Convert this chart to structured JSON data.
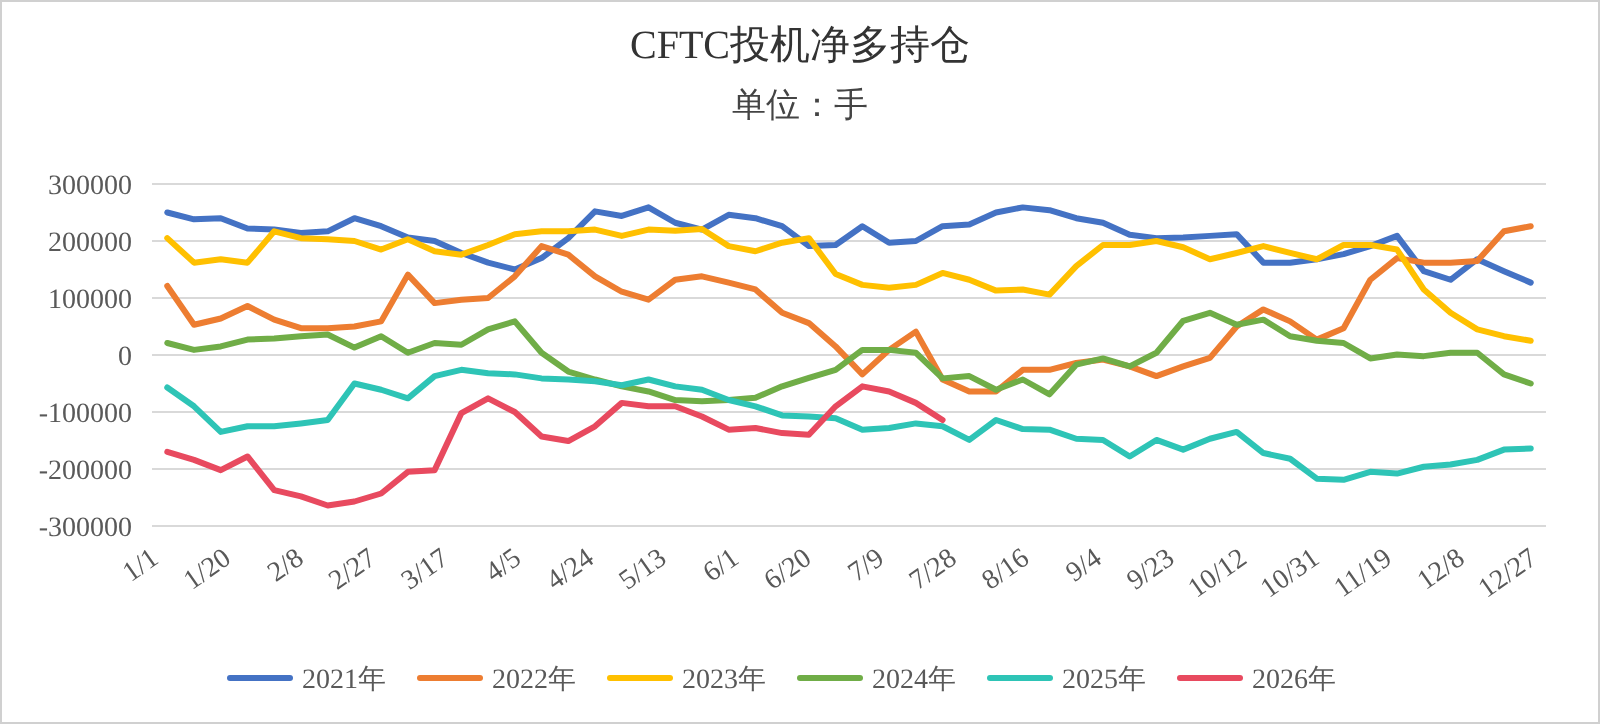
{
  "chart_data": {
    "type": "line",
    "title": "CFTC投机净多持仓",
    "subtitle": "单位：手",
    "x": [
      "--01-05",
      "--01-12",
      "--01-19",
      "--01-26",
      "--02-02",
      "--02-09",
      "--02-16",
      "--02-23",
      "--03-01",
      "--03-08",
      "--03-15",
      "--03-22",
      "--03-29",
      "--04-05",
      "--04-12",
      "--04-19",
      "--04-26",
      "--05-03",
      "--05-10",
      "--05-17",
      "--05-24",
      "--05-31",
      "--06-07",
      "--06-14",
      "--06-21",
      "--06-28",
      "--07-05",
      "--07-12",
      "--07-19",
      "--07-26",
      "--08-02",
      "--08-09",
      "--08-16",
      "--08-23",
      "--08-30",
      "--09-06",
      "--09-13",
      "--09-20",
      "--09-27",
      "--10-04",
      "--10-11",
      "--10-18",
      "--10-25",
      "--11-01",
      "--11-08",
      "--11-15",
      "--11-22",
      "--11-29",
      "--12-06",
      "--12-13",
      "--12-20",
      "--12-27"
    ],
    "xlim": [
      "--01-01",
      "--12-31"
    ],
    "xticks": [
      {
        "value": "--01-01",
        "label": "1/1"
      },
      {
        "value": "--01-20",
        "label": "1/20"
      },
      {
        "value": "--02-08",
        "label": "2/8"
      },
      {
        "value": "--02-27",
        "label": "2/27"
      },
      {
        "value": "--03-17",
        "label": "3/17"
      },
      {
        "value": "--04-05",
        "label": "4/5"
      },
      {
        "value": "--04-24",
        "label": "4/24"
      },
      {
        "value": "--05-13",
        "label": "5/13"
      },
      {
        "value": "--06-01",
        "label": "6/1"
      },
      {
        "value": "--06-20",
        "label": "6/20"
      },
      {
        "value": "--07-09",
        "label": "7/9"
      },
      {
        "value": "--07-28",
        "label": "7/28"
      },
      {
        "value": "--08-16",
        "label": "8/16"
      },
      {
        "value": "--09-04",
        "label": "9/4"
      },
      {
        "value": "--09-23",
        "label": "9/23"
      },
      {
        "value": "--10-12",
        "label": "10/12"
      },
      {
        "value": "--10-31",
        "label": "10/31"
      },
      {
        "value": "--11-19",
        "label": "11/19"
      },
      {
        "value": "--12-08",
        "label": "12/8"
      },
      {
        "value": "--12-27",
        "label": "12/27"
      }
    ],
    "ylim": [
      -300000,
      300000
    ],
    "yticks": [
      -300000,
      -200000,
      -100000,
      0,
      100000,
      200000,
      300000
    ],
    "grid": "y",
    "legend": "bottom",
    "marker": "none",
    "line_style": "solid",
    "series": [
      {
        "name": "2021年",
        "color": "#4472c4",
        "values": [
          250000,
          238000,
          240000,
          222000,
          220000,
          214000,
          217000,
          240000,
          226000,
          206000,
          200000,
          179000,
          162000,
          150000,
          170000,
          205000,
          252000,
          244000,
          259000,
          232000,
          220000,
          246000,
          240000,
          226000,
          191000,
          193000,
          226000,
          197000,
          200000,
          226000,
          229000,
          250000,
          259000,
          254000,
          240000,
          232000,
          211000,
          205000,
          206000,
          209000,
          212000,
          162000,
          162000,
          168000,
          177000,
          191000,
          209000,
          147000,
          132000,
          168000,
          147000,
          127000
        ]
      },
      {
        "name": "2022年",
        "color": "#ed7d31",
        "values": [
          121000,
          53000,
          64000,
          86000,
          62000,
          47000,
          47000,
          50000,
          59000,
          141000,
          91000,
          97000,
          100000,
          138000,
          191000,
          176000,
          138000,
          111000,
          97000,
          132000,
          138000,
          127000,
          115000,
          74000,
          56000,
          15000,
          -34000,
          9000,
          41000,
          -43000,
          -64000,
          -64000,
          -26000,
          -26000,
          -14000,
          -8000,
          -20000,
          -37000,
          -20000,
          -5000,
          50000,
          80000,
          59000,
          27000,
          47000,
          132000,
          170000,
          162000,
          162000,
          165000,
          217000,
          226000
        ]
      },
      {
        "name": "2023年",
        "color": "#ffc000",
        "values": [
          205000,
          162000,
          168000,
          162000,
          217000,
          205000,
          203000,
          200000,
          185000,
          203000,
          182000,
          176000,
          193000,
          212000,
          217000,
          217000,
          220000,
          209000,
          220000,
          218000,
          221000,
          191000,
          182000,
          197000,
          205000,
          142000,
          123000,
          118000,
          123000,
          144000,
          132000,
          113000,
          115000,
          106000,
          156000,
          193000,
          193000,
          200000,
          189000,
          168000,
          179000,
          191000,
          179000,
          168000,
          193000,
          193000,
          185000,
          115000,
          74000,
          45000,
          33000,
          25000
        ]
      },
      {
        "name": "2024年",
        "color": "#70ad47",
        "values": [
          21000,
          9000,
          15000,
          27000,
          29000,
          33000,
          36000,
          13000,
          33000,
          4000,
          21000,
          18000,
          45000,
          59000,
          4000,
          -29000,
          -43000,
          -55000,
          -64000,
          -79000,
          -81000,
          -79000,
          -75000,
          -55000,
          -40000,
          -26000,
          9000,
          9000,
          4000,
          -41000,
          -37000,
          -61000,
          -43000,
          -69000,
          -17000,
          -6000,
          -20000,
          4000,
          60000,
          74000,
          53000,
          62000,
          33000,
          25000,
          21000,
          -6000,
          1000,
          -2000,
          4000,
          4000,
          -34000,
          -50000
        ]
      },
      {
        "name": "2025年",
        "color": "#2ec4b6",
        "values": [
          -57000,
          -90000,
          -135000,
          -125000,
          -125000,
          -120000,
          -114000,
          -50000,
          -61000,
          -76000,
          -37000,
          -26000,
          -32000,
          -34000,
          -41000,
          -43000,
          -46000,
          -53000,
          -43000,
          -55000,
          -61000,
          -79000,
          -90000,
          -106000,
          -108000,
          -111000,
          -131000,
          -128000,
          -120000,
          -125000,
          -149000,
          -114000,
          -130000,
          -131000,
          -147000,
          -149000,
          -178000,
          -149000,
          -166000,
          -147000,
          -135000,
          -172000,
          -182000,
          -217000,
          -219000,
          -205000,
          -208000,
          -196000,
          -192000,
          -184000,
          -166000,
          -164000
        ]
      },
      {
        "name": "2026年",
        "color": "#e84a5f",
        "values": [
          -170000,
          -184000,
          -202000,
          -178000,
          -237000,
          -248000,
          -264000,
          -257000,
          -243000,
          -205000,
          -202000,
          -102000,
          -76000,
          -100000,
          -143000,
          -151000,
          -125000,
          -84000,
          -90000,
          -90000,
          -108000,
          -131000,
          -128000,
          -137000,
          -140000,
          -90000,
          -55000,
          -64000,
          -84000,
          -114000,
          null,
          null,
          null,
          null,
          null,
          null,
          null,
          null,
          null,
          null,
          null,
          null,
          null,
          null,
          null,
          null,
          null,
          null,
          null,
          null,
          null,
          null
        ]
      }
    ]
  }
}
